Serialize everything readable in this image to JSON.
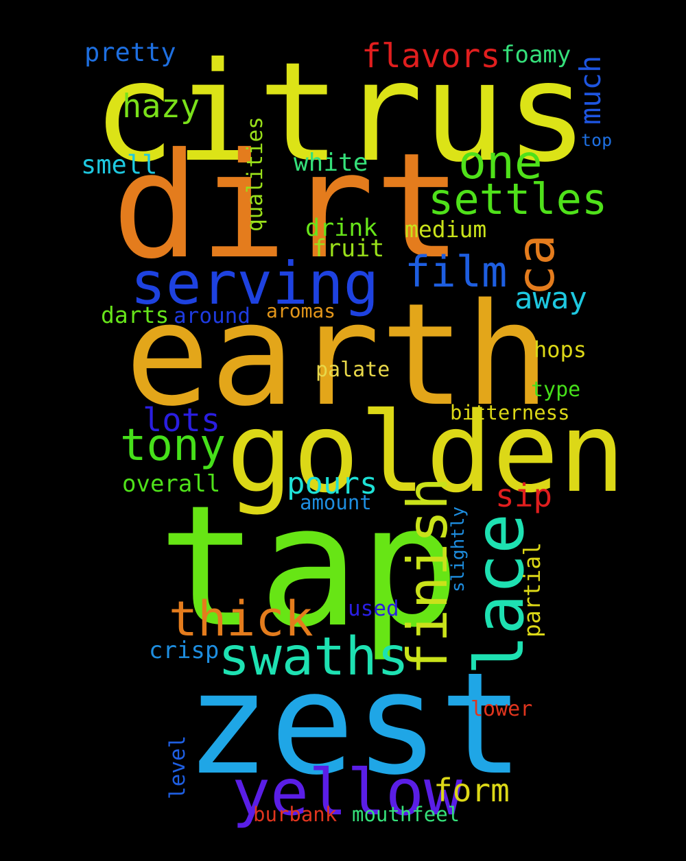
{
  "words": [
    {
      "text": "citrus",
      "color": "#dce317",
      "orientation": "horizontal"
    },
    {
      "text": "dirt",
      "color": "#e47c1d",
      "orientation": "horizontal"
    },
    {
      "text": "earth",
      "color": "#e3a61a",
      "orientation": "horizontal"
    },
    {
      "text": "golden",
      "color": "#dcd817",
      "orientation": "horizontal"
    },
    {
      "text": "tap",
      "color": "#67e515",
      "orientation": "horizontal"
    },
    {
      "text": "zest",
      "color": "#1fa6e6",
      "orientation": "horizontal"
    },
    {
      "text": "serving",
      "color": "#1e42e0",
      "orientation": "horizontal"
    },
    {
      "text": "yellow",
      "color": "#5a1ee6",
      "orientation": "horizontal"
    },
    {
      "text": "swaths",
      "color": "#1ee1b2",
      "orientation": "horizontal"
    },
    {
      "text": "thick",
      "color": "#e47c1d",
      "orientation": "horizontal"
    },
    {
      "text": "tony",
      "color": "#46e01a",
      "orientation": "horizontal"
    },
    {
      "text": "one",
      "color": "#4fe11a",
      "orientation": "horizontal"
    },
    {
      "text": "settles",
      "color": "#4fe11a",
      "orientation": "horizontal"
    },
    {
      "text": "film",
      "color": "#1e5ee0",
      "orientation": "horizontal"
    },
    {
      "text": "ca",
      "color": "#e47c1d",
      "orientation": "vertical"
    },
    {
      "text": "lace",
      "color": "#1ee1b2",
      "orientation": "vertical"
    },
    {
      "text": "finish",
      "color": "#c9e21a",
      "orientation": "vertical"
    },
    {
      "text": "flavors",
      "color": "#e01e1e",
      "orientation": "horizontal"
    },
    {
      "text": "hazy",
      "color": "#7ae01a",
      "orientation": "horizontal"
    },
    {
      "text": "pretty",
      "color": "#1e6fe0",
      "orientation": "horizontal"
    },
    {
      "text": "foamy",
      "color": "#35e07a",
      "orientation": "horizontal"
    },
    {
      "text": "much",
      "color": "#1e55e0",
      "orientation": "vertical"
    },
    {
      "text": "top",
      "color": "#1e6fe0",
      "orientation": "horizontal"
    },
    {
      "text": "smell",
      "color": "#1ec8e0",
      "orientation": "horizontal"
    },
    {
      "text": "white",
      "color": "#35e07a",
      "orientation": "horizontal"
    },
    {
      "text": "qualities",
      "color": "#9ae01a",
      "orientation": "vertical"
    },
    {
      "text": "drink",
      "color": "#67e51a",
      "orientation": "horizontal"
    },
    {
      "text": "medium",
      "color": "#c9e21a",
      "orientation": "horizontal"
    },
    {
      "text": "fruit",
      "color": "#9ae01a",
      "orientation": "horizontal"
    },
    {
      "text": "away",
      "color": "#1ec8e0",
      "orientation": "horizontal"
    },
    {
      "text": "darts",
      "color": "#67e51a",
      "orientation": "horizontal"
    },
    {
      "text": "around",
      "color": "#1e3be0",
      "orientation": "horizontal"
    },
    {
      "text": "aromas",
      "color": "#e3961a",
      "orientation": "horizontal"
    },
    {
      "text": "hops",
      "color": "#dcd817",
      "orientation": "horizontal"
    },
    {
      "text": "palate",
      "color": "#e8d84a",
      "orientation": "horizontal"
    },
    {
      "text": "type",
      "color": "#46e01a",
      "orientation": "horizontal"
    },
    {
      "text": "lots",
      "color": "#2a1ee0",
      "orientation": "horizontal"
    },
    {
      "text": "bitterness",
      "color": "#dcd817",
      "orientation": "horizontal"
    },
    {
      "text": "overall",
      "color": "#4fe11a",
      "orientation": "horizontal"
    },
    {
      "text": "pours",
      "color": "#1ee1d6",
      "orientation": "horizontal"
    },
    {
      "text": "sip",
      "color": "#e01e1e",
      "orientation": "horizontal"
    },
    {
      "text": "amount",
      "color": "#1e8ee0",
      "orientation": "horizontal"
    },
    {
      "text": "slightly",
      "color": "#1e8ee0",
      "orientation": "vertical"
    },
    {
      "text": "partial",
      "color": "#dcd817",
      "orientation": "vertical"
    },
    {
      "text": "used",
      "color": "#2a1ee0",
      "orientation": "horizontal"
    },
    {
      "text": "crisp",
      "color": "#1e8ee0",
      "orientation": "horizontal"
    },
    {
      "text": "lower",
      "color": "#e0351e",
      "orientation": "horizontal"
    },
    {
      "text": "level",
      "color": "#1e5ee0",
      "orientation": "vertical"
    },
    {
      "text": "form",
      "color": "#dcd817",
      "orientation": "horizontal"
    },
    {
      "text": "burbank",
      "color": "#e0351e",
      "orientation": "horizontal"
    },
    {
      "text": "mouthfeel",
      "color": "#35e07a",
      "orientation": "horizontal"
    }
  ]
}
